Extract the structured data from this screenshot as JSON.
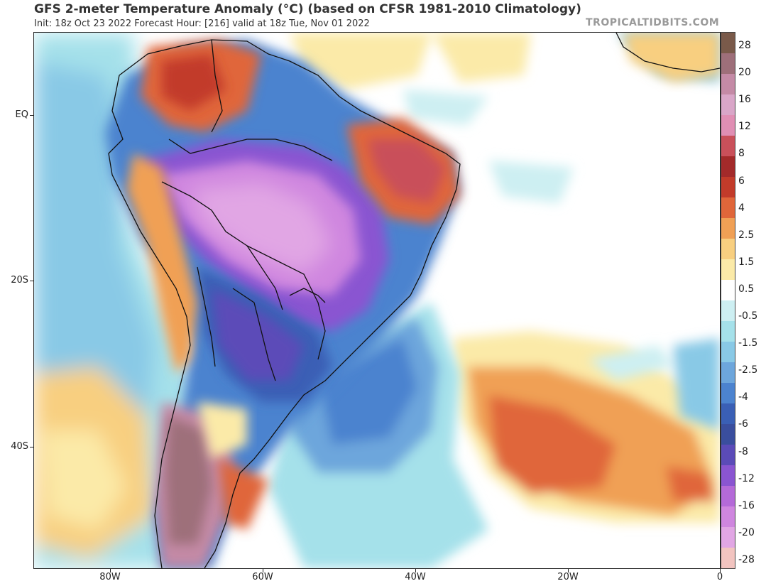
{
  "header": {
    "title": "GFS 2-meter Temperature Anomaly (°C) (based on CFSR 1981-2010 Climatology)",
    "subtitle": "Init: 18z Oct 23 2022   Forecast Hour: [216]   valid at 18z Tue, Nov 01 2022",
    "brand": "TROPICALTIDBITS.COM"
  },
  "map": {
    "lat_labels": [
      "EQ",
      "20S",
      "40S"
    ],
    "lon_labels": [
      "80W",
      "60W",
      "40W",
      "20W",
      "0"
    ]
  },
  "colorbar": {
    "labels": [
      "28",
      "20",
      "16",
      "12",
      "8",
      "6",
      "4",
      "2.5",
      "1.5",
      "0.5",
      "-0.5",
      "-1.5",
      "-2.5",
      "-4",
      "-6",
      "-8",
      "-12",
      "-16",
      "-20",
      "-28"
    ],
    "colors": [
      "#7a5a4a",
      "#9e6f7a",
      "#c48aa6",
      "#d9a6c8",
      "#e08fb4",
      "#c9505a",
      "#a32a2a",
      "#c23b2a",
      "#e0663a",
      "#f0a055",
      "#f8cf80",
      "#fbeaa8",
      "#ffffff",
      "#cdeff2",
      "#a5e1ea",
      "#89c9e6",
      "#6da6dc",
      "#4c83cf",
      "#3a5fb5",
      "#3a4e9e",
      "#5b4bb8",
      "#8a55d1",
      "#b46ad8",
      "#cf86df",
      "#e1a6e4",
      "#f2c4c0"
    ]
  }
}
